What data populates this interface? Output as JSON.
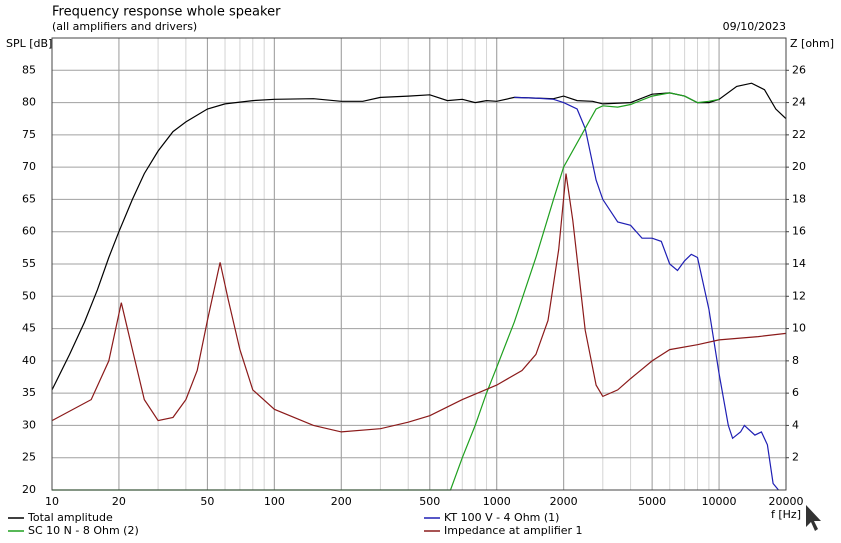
{
  "chart_data": {
    "type": "line",
    "title": "Frequency response whole speaker",
    "subtitle": "(all amplifiers and drivers)",
    "date": "09/10/2023",
    "y_label": "SPL [dB]",
    "y2_label": "Z [ohm]",
    "x_label": "f [Hz]",
    "log_x": true,
    "grid": true,
    "x_minor_grid": true,
    "xlim": [
      10,
      20000
    ],
    "xticks": [
      10,
      20,
      50,
      100,
      200,
      500,
      1000,
      2000,
      5000,
      10000,
      20000
    ],
    "ylim": [
      20,
      90
    ],
    "yticks": [
      20,
      25,
      30,
      35,
      40,
      45,
      50,
      55,
      60,
      65,
      70,
      75,
      80,
      85
    ],
    "y2lim": [
      0,
      28
    ],
    "y2ticks": [
      2,
      4,
      6,
      8,
      10,
      12,
      14,
      16,
      18,
      20,
      22,
      24,
      26
    ],
    "series": [
      {
        "name": "Total amplitude",
        "color": "#000000",
        "x": [
          10,
          12,
          14,
          16,
          18,
          20,
          23,
          26,
          30,
          35,
          40,
          50,
          60,
          80,
          100,
          150,
          200,
          250,
          300,
          400,
          500,
          600,
          700,
          800,
          900,
          1000,
          1200,
          1500,
          1800,
          2000,
          2300,
          2700,
          3000,
          4000,
          5000,
          6000,
          7000,
          8000,
          9000,
          10000,
          12000,
          14000,
          16000,
          18000,
          20000
        ],
        "values": [
          35.5,
          41,
          46,
          51,
          56,
          60,
          65,
          69,
          72.5,
          75.5,
          77,
          79,
          79.8,
          80.3,
          80.5,
          80.6,
          80.2,
          80.2,
          80.8,
          81,
          81.2,
          80.3,
          80.5,
          80,
          80.3,
          80.2,
          80.8,
          80.7,
          80.6,
          81,
          80.3,
          80.2,
          79.8,
          80,
          81.3,
          81.5,
          81,
          80,
          80,
          80.5,
          82.5,
          83,
          82,
          79,
          77.5
        ]
      },
      {
        "name": "KT 100 V - 4 Ohm (1)",
        "color": "#1f1fb4",
        "x": [
          1200,
          1500,
          1800,
          2000,
          2300,
          2500,
          2800,
          3000,
          3500,
          4000,
          4500,
          5000,
          5500,
          6000,
          6500,
          7000,
          7500,
          8000,
          9000,
          10000,
          11000,
          11500,
          12500,
          13000,
          14500,
          15500,
          16500,
          17500,
          18500
        ],
        "values": [
          80.8,
          80.7,
          80.5,
          80,
          79,
          76,
          68,
          65,
          61.5,
          61,
          59,
          59,
          58.5,
          55,
          54,
          55.5,
          56.5,
          56,
          48,
          38,
          30,
          28,
          29,
          30,
          28.5,
          29,
          27,
          21,
          20
        ]
      },
      {
        "name": "SC 10 N - 8 Ohm (2)",
        "color": "#1fa01f",
        "x": [
          10,
          620,
          700,
          800,
          900,
          1000,
          1200,
          1500,
          1800,
          2000,
          2500,
          2800,
          3000,
          3500,
          4000,
          5000,
          6000,
          7000,
          8000,
          9000,
          10000
        ],
        "values": [
          20,
          20,
          25,
          30,
          35,
          39,
          46,
          56,
          65,
          70,
          76,
          79,
          79.5,
          79.3,
          79.7,
          81,
          81.5,
          81,
          80,
          80.2,
          80.5
        ]
      },
      {
        "name": "Impedance at amplifier 1",
        "color": "#8b1a1a",
        "axis": "y2",
        "x": [
          10,
          15,
          18,
          20.5,
          23,
          26,
          30,
          35,
          40,
          45,
          50,
          57,
          62,
          70,
          80,
          100,
          150,
          200,
          300,
          400,
          500,
          700,
          1000,
          1300,
          1500,
          1700,
          1900,
          2050,
          2200,
          2500,
          2800,
          3000,
          3500,
          4000,
          5000,
          6000,
          8000,
          10000,
          15000,
          20000
        ],
        "values": [
          4.3,
          5.6,
          8,
          11.6,
          8.7,
          5.6,
          4.3,
          4.5,
          5.6,
          7.4,
          10.5,
          14.1,
          11.8,
          8.7,
          6.2,
          5,
          4,
          3.6,
          3.8,
          4.2,
          4.6,
          5.6,
          6.5,
          7.4,
          8.4,
          10.5,
          14.9,
          19.6,
          16.7,
          9.9,
          6.5,
          5.8,
          6.2,
          6.9,
          8,
          8.7,
          9,
          9.3,
          9.5,
          9.7
        ]
      }
    ]
  }
}
